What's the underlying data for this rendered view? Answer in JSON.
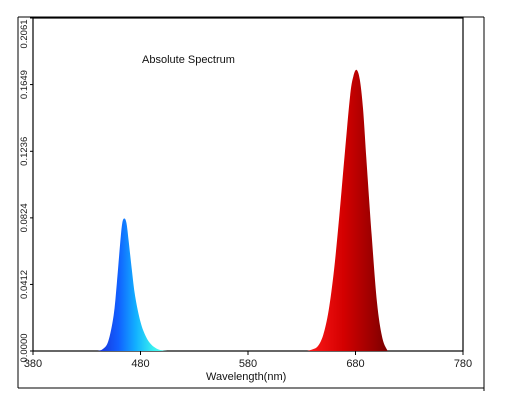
{
  "chart_data": {
    "type": "area",
    "title": "Absolute Spectrum",
    "xlabel": "Wavelength(nm)",
    "ylabel": "",
    "xlim": [
      380,
      780
    ],
    "ylim": [
      0,
      0.2061
    ],
    "xticks": [
      "380",
      "480",
      "580",
      "680",
      "780"
    ],
    "yticks": [
      "0.0000",
      "0.0412",
      "0.0824",
      "0.1236",
      "0.1649",
      "0.2061"
    ],
    "grid": false,
    "legend": "none",
    "series": [
      {
        "color": "#1a5fff",
        "x": [
          440,
          445,
          450,
          455,
          458,
          461,
          463,
          465,
          467,
          469,
          472,
          475,
          480,
          485,
          490,
          495,
          500,
          505
        ],
        "values": [
          0.0,
          0.0012,
          0.006,
          0.022,
          0.042,
          0.066,
          0.079,
          0.082,
          0.079,
          0.068,
          0.05,
          0.034,
          0.018,
          0.009,
          0.004,
          0.0015,
          0.0004,
          0.0
        ]
      },
      {
        "color": "#cc0000",
        "x": [
          635,
          640,
          645,
          650,
          655,
          660,
          665,
          670,
          675,
          678,
          681,
          684,
          687,
          690,
          695,
          700,
          705,
          710
        ],
        "values": [
          0.0,
          0.001,
          0.003,
          0.01,
          0.025,
          0.05,
          0.084,
          0.122,
          0.158,
          0.17,
          0.174,
          0.168,
          0.15,
          0.12,
          0.072,
          0.03,
          0.008,
          0.0
        ]
      }
    ]
  }
}
